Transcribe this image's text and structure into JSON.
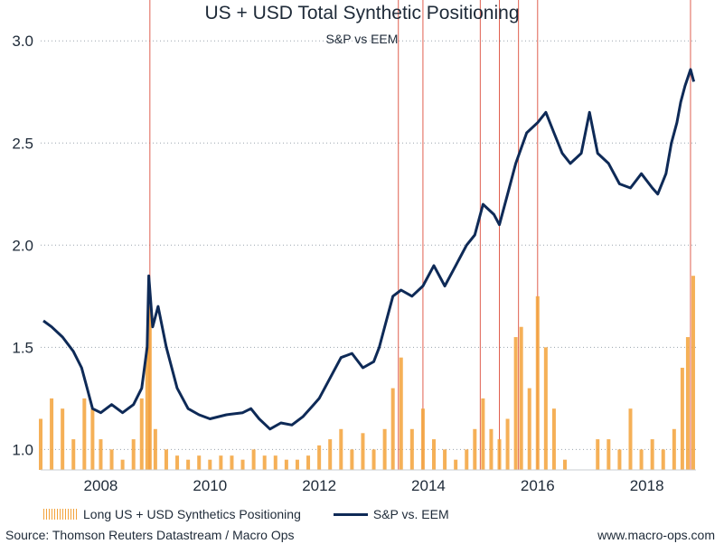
{
  "chart_data": {
    "type": "line",
    "title": "US + USD Total Synthetic Positioning",
    "subtitle": "S&P vs EEM",
    "xlabel": "",
    "ylabel": "",
    "x_tick_labels": [
      "2008",
      "2010",
      "2012",
      "2014",
      "2016",
      "2018"
    ],
    "y_tick_labels": [
      "1.0",
      "1.5",
      "2.0",
      "2.5",
      "3.0"
    ],
    "xlim": [
      2006.9,
      2018.9
    ],
    "ylim": [
      0.9,
      3.2
    ],
    "grid": "horizontal dotted",
    "legend_position": "bottom",
    "series": [
      {
        "name": "S&P vs. EEM",
        "type": "line",
        "color": "#0e2a57",
        "x": [
          2006.95,
          2007.1,
          2007.3,
          2007.5,
          2007.65,
          2007.75,
          2007.85,
          2008.0,
          2008.2,
          2008.4,
          2008.6,
          2008.75,
          2008.85,
          2008.88,
          2008.95,
          2009.05,
          2009.2,
          2009.4,
          2009.6,
          2009.8,
          2010.0,
          2010.3,
          2010.6,
          2010.75,
          2010.9,
          2011.1,
          2011.3,
          2011.5,
          2011.7,
          2011.9,
          2012.0,
          2012.2,
          2012.4,
          2012.6,
          2012.8,
          2013.0,
          2013.1,
          2013.2,
          2013.35,
          2013.5,
          2013.7,
          2013.9,
          2014.1,
          2014.3,
          2014.5,
          2014.7,
          2014.85,
          2015.0,
          2015.2,
          2015.3,
          2015.45,
          2015.6,
          2015.8,
          2016.0,
          2016.15,
          2016.3,
          2016.45,
          2016.6,
          2016.8,
          2016.95,
          2017.1,
          2017.3,
          2017.5,
          2017.7,
          2017.9,
          2018.1,
          2018.2,
          2018.35,
          2018.45,
          2018.55,
          2018.62,
          2018.7,
          2018.8,
          2018.86
        ],
        "y": [
          1.63,
          1.6,
          1.55,
          1.48,
          1.4,
          1.3,
          1.2,
          1.18,
          1.22,
          1.18,
          1.22,
          1.3,
          1.5,
          1.85,
          1.6,
          1.7,
          1.5,
          1.3,
          1.2,
          1.17,
          1.15,
          1.17,
          1.18,
          1.2,
          1.15,
          1.1,
          1.13,
          1.12,
          1.16,
          1.22,
          1.25,
          1.35,
          1.45,
          1.47,
          1.4,
          1.43,
          1.5,
          1.6,
          1.75,
          1.78,
          1.75,
          1.8,
          1.9,
          1.8,
          1.9,
          2.0,
          2.05,
          2.2,
          2.15,
          2.1,
          2.25,
          2.4,
          2.55,
          2.6,
          2.65,
          2.55,
          2.45,
          2.4,
          2.45,
          2.65,
          2.45,
          2.4,
          2.3,
          2.28,
          2.35,
          2.28,
          2.25,
          2.35,
          2.5,
          2.6,
          2.7,
          2.78,
          2.86,
          2.8
        ]
      },
      {
        "name": "Long US + USD Synthetics Positioning",
        "type": "bar",
        "color": "#f3a23a",
        "x": [
          2006.9,
          2007.1,
          2007.3,
          2007.5,
          2007.7,
          2007.85,
          2008.0,
          2008.2,
          2008.4,
          2008.6,
          2008.75,
          2008.85,
          2008.9,
          2009.0,
          2009.2,
          2009.4,
          2009.6,
          2009.8,
          2010.0,
          2010.2,
          2010.4,
          2010.6,
          2010.8,
          2011.0,
          2011.2,
          2011.4,
          2011.6,
          2011.8,
          2012.0,
          2012.2,
          2012.4,
          2012.6,
          2012.8,
          2013.0,
          2013.2,
          2013.35,
          2013.5,
          2013.7,
          2013.9,
          2014.1,
          2014.3,
          2014.5,
          2014.7,
          2014.85,
          2015.0,
          2015.15,
          2015.3,
          2015.45,
          2015.6,
          2015.7,
          2015.85,
          2016.0,
          2016.15,
          2016.3,
          2016.5,
          2016.7,
          2016.9,
          2017.1,
          2017.3,
          2017.5,
          2017.7,
          2017.9,
          2018.1,
          2018.3,
          2018.5,
          2018.65,
          2018.75,
          2018.85
        ],
        "y": [
          1.15,
          1.25,
          1.2,
          1.05,
          1.25,
          1.2,
          1.05,
          1.0,
          0.95,
          1.05,
          1.25,
          1.5,
          1.7,
          1.1,
          1.0,
          0.97,
          0.95,
          0.97,
          0.95,
          0.97,
          0.97,
          0.95,
          1.0,
          0.97,
          0.97,
          0.95,
          0.95,
          0.97,
          1.02,
          1.05,
          1.1,
          1.0,
          1.08,
          1.0,
          1.1,
          1.3,
          1.45,
          1.1,
          1.2,
          1.05,
          1.0,
          0.95,
          1.0,
          1.1,
          1.25,
          1.1,
          1.05,
          1.15,
          1.55,
          1.6,
          1.3,
          1.75,
          1.5,
          1.2,
          0.95,
          0.9,
          0.9,
          1.05,
          1.05,
          1.0,
          1.2,
          1.0,
          1.05,
          1.0,
          1.1,
          1.4,
          1.55,
          1.85
        ]
      }
    ],
    "vertical_markers": {
      "color": "#e06050",
      "x": [
        2008.9,
        2013.45,
        2013.9,
        2014.95,
        2015.3,
        2015.65,
        2016.0,
        2018.8
      ]
    }
  },
  "legend": {
    "bars_label": "Long US + USD Synthetics Positioning",
    "line_label": "S&P vs. EEM"
  },
  "footer": {
    "source": "Source: Thomson Reuters Datastream / Macro Ops",
    "website": "www.macro-ops.com"
  }
}
